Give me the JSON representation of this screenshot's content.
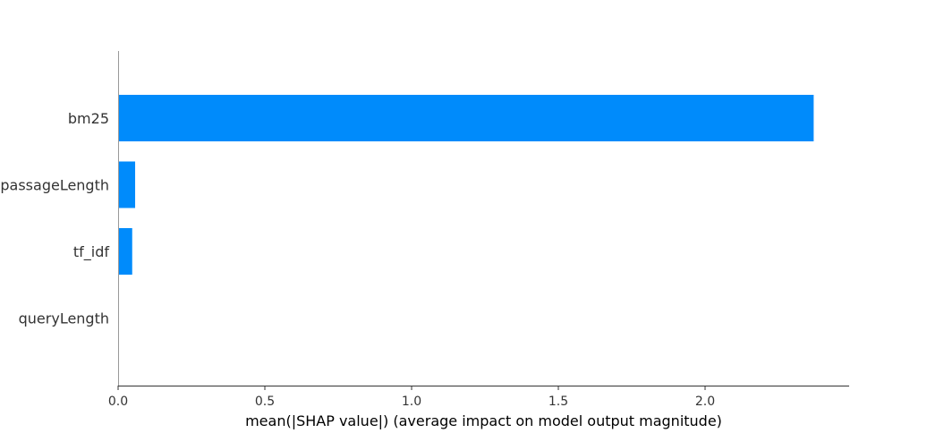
{
  "chart_data": {
    "type": "bar",
    "orientation": "horizontal",
    "categories": [
      "bm25",
      "passageLength",
      "tf_idf",
      "queryLength"
    ],
    "values": [
      2.37,
      0.058,
      0.048,
      0.0
    ],
    "xlabel": "mean(|SHAP value|) (average impact on model output magnitude)",
    "ylabel": "",
    "xlim": [
      0,
      2.5
    ],
    "xticks": [
      0.0,
      0.5,
      1.0,
      1.5,
      2.0
    ],
    "tick_labels": [
      "0.0",
      "0.5",
      "1.0",
      "1.5",
      "2.0"
    ],
    "grid": false,
    "legend": "none",
    "bar_color": "#008bfb",
    "axis_color": "#333333"
  }
}
